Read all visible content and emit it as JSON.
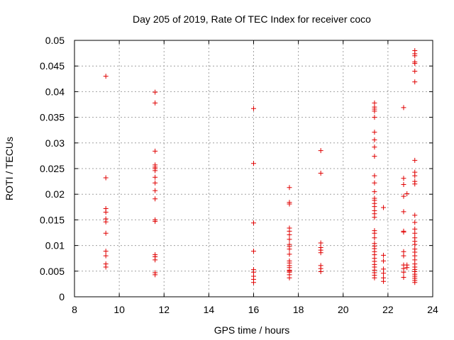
{
  "chart_data": {
    "type": "scatter",
    "title": "Day 205 of 2019, Rate Of TEC Index for receiver coco",
    "xlabel": "GPS time / hours",
    "ylabel": "ROTI / TECUs",
    "xlim": [
      8,
      24
    ],
    "ylim": [
      0,
      0.05
    ],
    "xticks": [
      "8",
      "10",
      "12",
      "14",
      "16",
      "18",
      "20",
      "22",
      "24"
    ],
    "yticks": [
      "0",
      "0.005",
      "0.01",
      "0.015",
      "0.02",
      "0.025",
      "0.03",
      "0.035",
      "0.04",
      "0.045",
      "0.05"
    ],
    "grid": true,
    "marker": "+",
    "color": "#e00000",
    "series": [
      {
        "name": "ROTI",
        "points": [
          [
            9.4,
            0.043
          ],
          [
            9.4,
            0.0232
          ],
          [
            9.4,
            0.0172
          ],
          [
            9.4,
            0.0165
          ],
          [
            9.4,
            0.0152
          ],
          [
            9.4,
            0.0146
          ],
          [
            9.4,
            0.0124
          ],
          [
            9.4,
            0.0089
          ],
          [
            9.4,
            0.008
          ],
          [
            9.4,
            0.0064
          ],
          [
            9.4,
            0.0058
          ],
          [
            11.6,
            0.0399
          ],
          [
            11.6,
            0.0378
          ],
          [
            11.6,
            0.0284
          ],
          [
            11.6,
            0.0257
          ],
          [
            11.6,
            0.0253
          ],
          [
            11.6,
            0.025
          ],
          [
            11.6,
            0.0246
          ],
          [
            11.6,
            0.0233
          ],
          [
            11.6,
            0.0222
          ],
          [
            11.6,
            0.0207
          ],
          [
            11.6,
            0.0191
          ],
          [
            11.6,
            0.015
          ],
          [
            11.6,
            0.0147
          ],
          [
            11.6,
            0.0082
          ],
          [
            11.6,
            0.0078
          ],
          [
            11.6,
            0.0072
          ],
          [
            11.6,
            0.0047
          ],
          [
            11.6,
            0.0043
          ],
          [
            16.0,
            0.0367
          ],
          [
            16.0,
            0.026
          ],
          [
            16.0,
            0.0144
          ],
          [
            16.0,
            0.0089
          ],
          [
            16.0,
            0.0053
          ],
          [
            16.0,
            0.0048
          ],
          [
            16.0,
            0.004
          ],
          [
            16.0,
            0.0034
          ],
          [
            16.0,
            0.0028
          ],
          [
            17.6,
            0.0213
          ],
          [
            17.6,
            0.0184
          ],
          [
            17.6,
            0.0181
          ],
          [
            17.6,
            0.0134
          ],
          [
            17.6,
            0.0128
          ],
          [
            17.6,
            0.0121
          ],
          [
            17.6,
            0.0112
          ],
          [
            17.6,
            0.0102
          ],
          [
            17.6,
            0.0098
          ],
          [
            17.6,
            0.0093
          ],
          [
            17.6,
            0.0083
          ],
          [
            17.6,
            0.007
          ],
          [
            17.6,
            0.0066
          ],
          [
            17.6,
            0.0061
          ],
          [
            17.6,
            0.0057
          ],
          [
            17.6,
            0.0052
          ],
          [
            17.6,
            0.005
          ],
          [
            17.6,
            0.0048
          ],
          [
            17.6,
            0.0043
          ],
          [
            17.6,
            0.0037
          ],
          [
            19.0,
            0.0285
          ],
          [
            19.0,
            0.0241
          ],
          [
            19.0,
            0.0105
          ],
          [
            19.0,
            0.0096
          ],
          [
            19.0,
            0.0091
          ],
          [
            19.0,
            0.0086
          ],
          [
            19.0,
            0.0061
          ],
          [
            19.0,
            0.0055
          ],
          [
            19.0,
            0.0049
          ],
          [
            21.4,
            0.0378
          ],
          [
            21.4,
            0.037
          ],
          [
            21.4,
            0.0366
          ],
          [
            21.4,
            0.0362
          ],
          [
            21.4,
            0.035
          ],
          [
            21.4,
            0.0321
          ],
          [
            21.4,
            0.0306
          ],
          [
            21.4,
            0.0292
          ],
          [
            21.4,
            0.0274
          ],
          [
            21.4,
            0.0236
          ],
          [
            21.4,
            0.0222
          ],
          [
            21.4,
            0.0205
          ],
          [
            21.4,
            0.0192
          ],
          [
            21.4,
            0.0188
          ],
          [
            21.4,
            0.0182
          ],
          [
            21.4,
            0.0176
          ],
          [
            21.4,
            0.0168
          ],
          [
            21.4,
            0.0162
          ],
          [
            21.4,
            0.0155
          ],
          [
            21.4,
            0.0129
          ],
          [
            21.4,
            0.0124
          ],
          [
            21.4,
            0.0115
          ],
          [
            21.4,
            0.0104
          ],
          [
            21.4,
            0.0099
          ],
          [
            21.4,
            0.0094
          ],
          [
            21.4,
            0.0088
          ],
          [
            21.4,
            0.0082
          ],
          [
            21.4,
            0.0075
          ],
          [
            21.4,
            0.0069
          ],
          [
            21.4,
            0.0063
          ],
          [
            21.4,
            0.0058
          ],
          [
            21.4,
            0.0052
          ],
          [
            21.4,
            0.0047
          ],
          [
            21.4,
            0.0042
          ],
          [
            21.4,
            0.0037
          ],
          [
            21.8,
            0.0174
          ],
          [
            21.8,
            0.0081
          ],
          [
            21.8,
            0.007
          ],
          [
            21.8,
            0.0054
          ],
          [
            21.8,
            0.0046
          ],
          [
            21.8,
            0.0037
          ],
          [
            21.8,
            0.003
          ],
          [
            22.7,
            0.0369
          ],
          [
            22.7,
            0.0231
          ],
          [
            22.7,
            0.0219
          ],
          [
            22.7,
            0.0196
          ],
          [
            22.7,
            0.0166
          ],
          [
            22.7,
            0.0128
          ],
          [
            22.7,
            0.0126
          ],
          [
            22.7,
            0.0088
          ],
          [
            22.7,
            0.008
          ],
          [
            22.7,
            0.0062
          ],
          [
            22.7,
            0.0055
          ],
          [
            22.7,
            0.0048
          ],
          [
            22.7,
            0.0038
          ],
          [
            22.85,
            0.0201
          ],
          [
            22.85,
            0.0062
          ],
          [
            22.85,
            0.0057
          ],
          [
            23.2,
            0.048
          ],
          [
            23.2,
            0.0474
          ],
          [
            23.2,
            0.047
          ],
          [
            23.2,
            0.0458
          ],
          [
            23.2,
            0.0455
          ],
          [
            23.2,
            0.044
          ],
          [
            23.2,
            0.0419
          ],
          [
            23.2,
            0.0266
          ],
          [
            23.2,
            0.0243
          ],
          [
            23.2,
            0.0236
          ],
          [
            23.2,
            0.0225
          ],
          [
            23.2,
            0.022
          ],
          [
            23.2,
            0.0159
          ],
          [
            23.2,
            0.0145
          ],
          [
            23.2,
            0.0132
          ],
          [
            23.2,
            0.0124
          ],
          [
            23.2,
            0.0115
          ],
          [
            23.2,
            0.0108
          ],
          [
            23.2,
            0.0102
          ],
          [
            23.2,
            0.0093
          ],
          [
            23.2,
            0.0087
          ],
          [
            23.2,
            0.008
          ],
          [
            23.2,
            0.0072
          ],
          [
            23.2,
            0.0064
          ],
          [
            23.2,
            0.0058
          ],
          [
            23.2,
            0.0053
          ],
          [
            23.2,
            0.0049
          ],
          [
            23.2,
            0.0044
          ],
          [
            23.2,
            0.004
          ],
          [
            23.2,
            0.0036
          ],
          [
            23.2,
            0.0032
          ],
          [
            23.2,
            0.0028
          ]
        ]
      }
    ]
  }
}
